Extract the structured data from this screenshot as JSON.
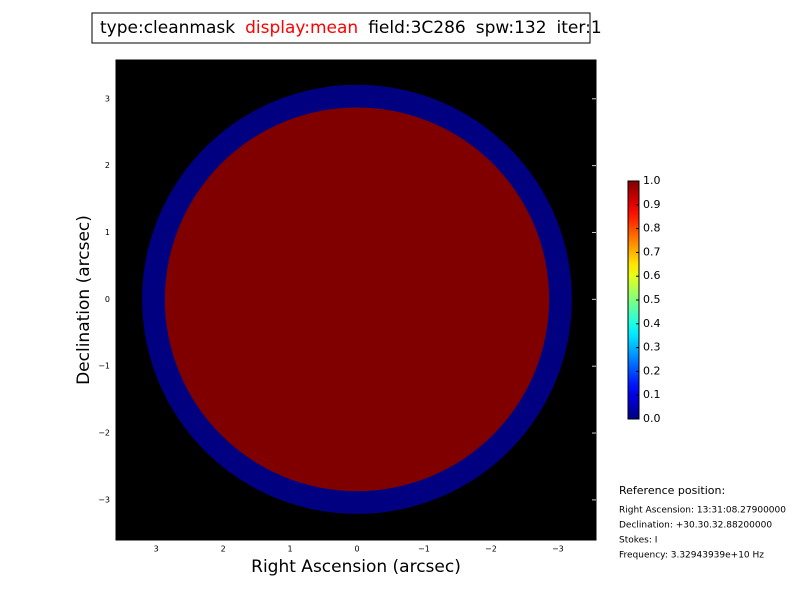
{
  "chart_data": {
    "type": "image",
    "title_parts": [
      {
        "text": "type:cleanmask",
        "color": "#000000"
      },
      {
        "text": "display:mean",
        "color": "#ff0000"
      },
      {
        "text": "field:3C286",
        "color": "#000000"
      },
      {
        "text": "spw:132",
        "color": "#000000"
      },
      {
        "text": "iter:1",
        "color": "#000000"
      }
    ],
    "x_label": "Right Ascension (arcsec)",
    "y_label": "Declination (arcsec)",
    "xlim": [
      3.6,
      -3.57
    ],
    "ylim": [
      -3.6,
      3.58
    ],
    "xticks": [
      3,
      2,
      1,
      0,
      {
        "value": -1,
        "label": "−1"
      },
      {
        "value": -2,
        "label": "−2"
      },
      {
        "value": -3,
        "label": "−3"
      }
    ],
    "yticks": [
      {
        "value": -3,
        "label": "−3"
      },
      {
        "value": -2,
        "label": "−2"
      },
      {
        "value": -1,
        "label": "−1"
      },
      0,
      1,
      2,
      3
    ],
    "background": "#000000",
    "colormap": "jet",
    "disks": [
      {
        "radius": 3.21,
        "value": 0
      },
      {
        "radius": 2.87,
        "value": 1
      }
    ],
    "colorbar_lim": [
      0,
      1
    ],
    "colorbar_ticks": [
      {
        "value": 0,
        "label": "0.0"
      },
      0.1,
      0.2,
      0.3,
      0.4,
      0.5,
      0.6,
      0.7,
      0.8,
      0.9,
      {
        "value": 1,
        "label": "1.0"
      }
    ],
    "reference": {
      "title": "Reference position:",
      "lines": [
        "Right Ascension: 13:31:08.27900000",
        "Declination: +30.30.32.88200000",
        "Stokes: I",
        "Frequency: 3.32943939e+10 Hz"
      ]
    }
  }
}
